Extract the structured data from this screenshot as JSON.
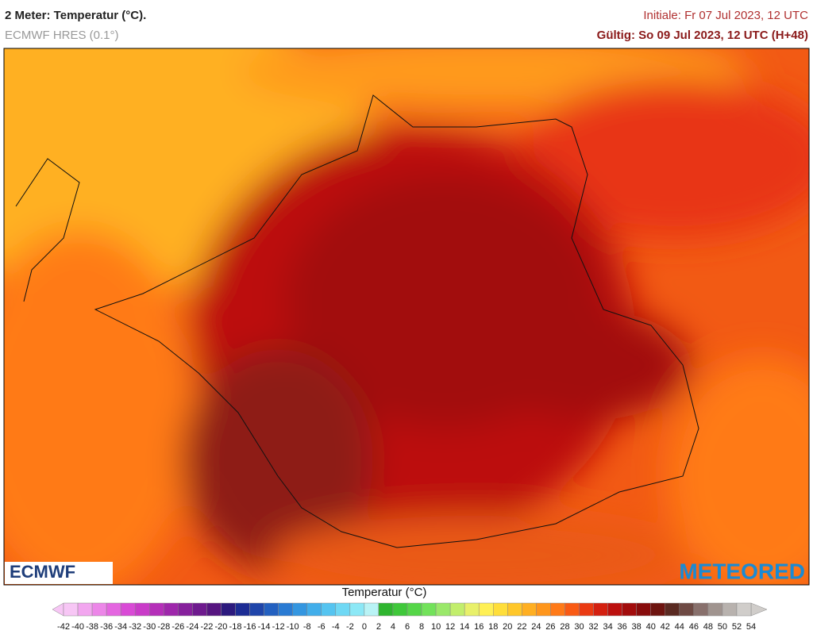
{
  "header": {
    "title": "2 Meter: Temperatur (°C).",
    "model": "ECMWF HRES (0.1°)",
    "init": "Initiale: Fr 07 Jul 2023, 12 UTC",
    "valid": "Gültig: So 09 Jul 2023, 12 UTC (H+48)"
  },
  "logos": {
    "left": "ECMWF",
    "right": "METEORED"
  },
  "legend": {
    "title": "Temperatur (°C)",
    "ticks": [
      -42,
      -40,
      -38,
      -36,
      -34,
      -32,
      -30,
      -28,
      -26,
      -24,
      -22,
      -20,
      -18,
      -16,
      -14,
      -12,
      -10,
      -8,
      -6,
      -4,
      -2,
      0,
      2,
      4,
      6,
      8,
      10,
      12,
      14,
      16,
      18,
      20,
      22,
      24,
      26,
      28,
      30,
      32,
      34,
      36,
      38,
      40,
      42,
      44,
      46,
      48,
      50,
      52,
      54
    ],
    "colors": [
      "#f7c6f5",
      "#f2a6ef",
      "#ec86e8",
      "#e466e0",
      "#d94ad6",
      "#c93bc8",
      "#b52fb9",
      "#9e27ab",
      "#86209c",
      "#6e1a8e",
      "#561580",
      "#2c1a7e",
      "#1c2c94",
      "#1f45aa",
      "#2360c0",
      "#2a7bd3",
      "#3496e0",
      "#42aeea",
      "#55c4f0",
      "#6fd8f4",
      "#8ce8f6",
      "#b9f3f5",
      "#2fb52f",
      "#3fc83a",
      "#55d648",
      "#72e25a",
      "#9ae86a",
      "#c2ee6c",
      "#e8f06a",
      "#fff055",
      "#ffde3a",
      "#ffc72a",
      "#ffaf22",
      "#ff961c",
      "#ff7a18",
      "#f95a14",
      "#ea3a12",
      "#d42010",
      "#bc100e",
      "#a20c0c",
      "#880c0c",
      "#6e1410",
      "#5a2a22",
      "#6e4a44",
      "#88706c",
      "#a0948f",
      "#b8b2ae",
      "#d0cdca"
    ]
  }
}
